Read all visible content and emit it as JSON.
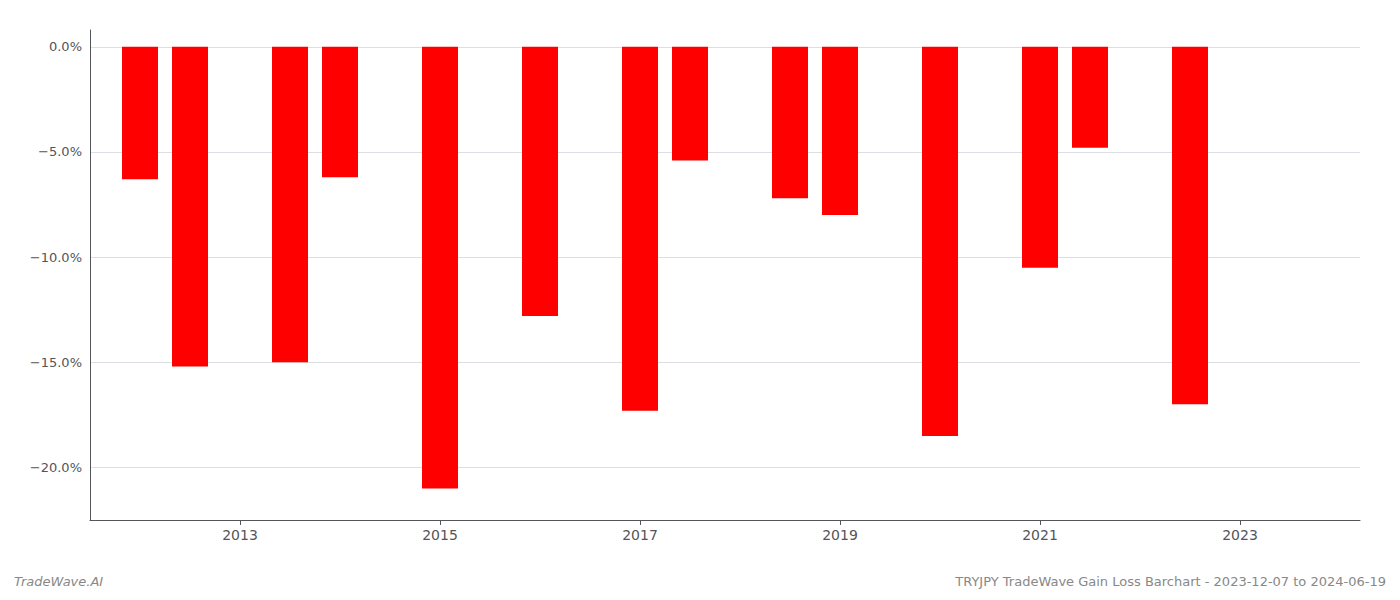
{
  "chart_data": {
    "type": "bar",
    "x": [
      2012.0,
      2012.5,
      2013.5,
      2014.0,
      2015.0,
      2016.0,
      2017.0,
      2017.5,
      2018.5,
      2019.0,
      2020.0,
      2021.0,
      2021.5,
      2022.5
    ],
    "values": [
      -6.3,
      -15.2,
      -15.0,
      -6.2,
      -21.0,
      -12.8,
      -17.3,
      -5.4,
      -7.2,
      -8.0,
      -18.5,
      -10.5,
      -4.8,
      -17.0
    ],
    "color": "#ff0000",
    "xlim": [
      2011.5,
      2024.2
    ],
    "xticks": [
      2013,
      2015,
      2017,
      2019,
      2021,
      2023
    ],
    "ylim": [
      -22.5,
      0.8
    ],
    "yticks": [
      {
        "value": 0.0,
        "label": "0.0%"
      },
      {
        "value": -5.0,
        "label": "−5.0%"
      },
      {
        "value": -10.0,
        "label": "−10.0%"
      },
      {
        "value": -15.0,
        "label": "−15.0%"
      },
      {
        "value": -20.0,
        "label": "−20.0%"
      }
    ],
    "grid": true,
    "annotations": [
      "TradeWave.AI",
      "TRYJPY TradeWave Gain Loss Barchart - 2023-12-07 to 2024-06-19"
    ]
  }
}
